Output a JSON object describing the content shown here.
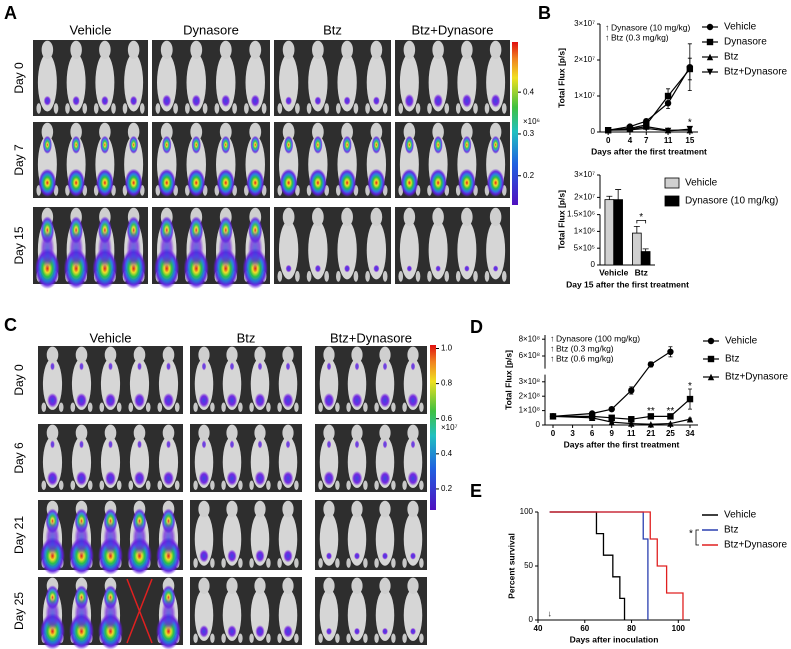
{
  "panel_labels": [
    "A",
    "B",
    "C",
    "D",
    "E"
  ],
  "panel_a": {
    "columns": [
      "Vehicle",
      "Dynasore",
      "Btz",
      "Btz+Dynasore"
    ],
    "rows": [
      "Day 0",
      "Day 7",
      "Day 15"
    ],
    "colorbar": {
      "lim": [
        0.13,
        0.52
      ],
      "ticks": [
        0.2,
        0.3,
        0.4
      ],
      "unit": "×10⁶"
    }
  },
  "panel_c": {
    "columns": [
      "Vehicle",
      "Btz",
      "Btz+Dynasore"
    ],
    "rows": [
      "Day 0",
      "Day 6",
      "Day 21",
      "Day 25"
    ],
    "colorbar": {
      "lim": [
        0.08,
        1.02
      ],
      "ticks": [
        0.2,
        0.4,
        0.6,
        0.8,
        {
          "value": 1,
          "label": "1.0"
        }
      ],
      "unit": "×10⁷"
    }
  },
  "chart_data": [
    {
      "type": "line",
      "x": [
        0,
        4,
        7,
        11,
        15
      ],
      "xticks": [
        0,
        4,
        7,
        11,
        15
      ],
      "xlim": [
        -1.5,
        16.5
      ],
      "ylim": [
        0,
        30000000
      ],
      "yticks": [
        0,
        {
          "value": 10000000,
          "label": "1×10⁷"
        },
        {
          "value": 20000000,
          "label": "2×10⁷"
        },
        {
          "value": 30000000,
          "label": "3×10⁷"
        }
      ],
      "ylabel": "Total Flux [p/s]",
      "xlabel": "Days after the first treatment",
      "treatments": [
        {
          "name": "Dynasore (10 mg/kg)",
          "color": "#e02020"
        },
        {
          "name": "Btz (0.3 mg/kg)",
          "color": "#2040d0"
        }
      ],
      "series": [
        {
          "name": "Vehicle",
          "marker": "circle",
          "color": "#000",
          "values": [
            500000,
            1500000,
            3000000,
            8000000,
            18000000
          ],
          "errors": [
            100000,
            300000,
            600000,
            1500000,
            6500000
          ]
        },
        {
          "name": "Dynasore",
          "marker": "square",
          "color": "#000",
          "values": [
            500000,
            1000000,
            2000000,
            10000000,
            17500000
          ],
          "errors": [
            100000,
            200000,
            500000,
            2000000,
            3000000
          ]
        },
        {
          "name": "Btz",
          "marker": "triangle-up",
          "color": "#000",
          "values": [
            500000,
            800000,
            1500000,
            500000,
            500000
          ],
          "errors": [
            100000,
            200000,
            300000,
            200000,
            200000
          ]
        },
        {
          "name": "Btz+Dynasore",
          "marker": "triangle-down",
          "color": "#000",
          "values": [
            500000,
            600000,
            1000000,
            300000,
            800000
          ],
          "errors": [
            100000,
            100000,
            200000,
            100000,
            300000
          ]
        }
      ],
      "annotations": [
        {
          "text": "*",
          "x": 15,
          "y": 2500000
        }
      ]
    },
    {
      "type": "bar",
      "categories": [
        "Vehicle",
        "Btz"
      ],
      "ylim": [
        0,
        30000000
      ],
      "ybreak": [
        1500000,
        15000000
      ],
      "yticks": [
        0,
        {
          "value": 500000,
          "label": "5×10⁵"
        },
        {
          "value": 1000000,
          "label": "1×10⁶"
        },
        {
          "value": 1500000,
          "label": "1.5×10⁶"
        },
        {
          "value": 20000000,
          "label": "2×10⁷"
        },
        {
          "value": 30000000,
          "label": "3×10⁷"
        }
      ],
      "ylabel": "Total Flux [p/s]",
      "xlabel": "Day 15 after the first treatment",
      "series": [
        {
          "name": "Vehicle",
          "color": "#d0d0d0",
          "values": [
            19000000,
            950000
          ],
          "errors": [
            1500000,
            200000
          ]
        },
        {
          "name": "Dynasore (10 mg/kg)",
          "color": "#000",
          "values": [
            19000000,
            400000
          ],
          "errors": [
            4500000,
            80000
          ]
        }
      ],
      "annotations": [
        {
          "text": "*",
          "category": 1
        }
      ]
    },
    {
      "type": "line",
      "xscale": "ordinal",
      "x": [
        0,
        6,
        9,
        11,
        21,
        25,
        34
      ],
      "xticks": [
        0,
        3,
        6,
        9,
        11,
        21,
        25,
        34
      ],
      "ylim": [
        0,
        850000000
      ],
      "ybreak": [
        350000000,
        450000000
      ],
      "yticks": [
        0,
        {
          "value": 100000000,
          "label": "1×10⁸"
        },
        {
          "value": 200000000,
          "label": "2×10⁸"
        },
        {
          "value": 300000000,
          "label": "3×10⁸"
        },
        {
          "value": 600000000,
          "label": "6×10⁸"
        },
        {
          "value": 800000000,
          "label": "8×10⁸"
        }
      ],
      "ylabel": "Total Flux [p/s]",
      "xlabel": "Days after the first treatment",
      "treatments": [
        {
          "name": "Dynasore (100 mg/kg)",
          "color": "#e02020"
        },
        {
          "name": "Btz (0.3 mg/kg)",
          "color": "#2040d0"
        },
        {
          "name": "Btz (0.6 mg/kg)",
          "color": "#30a030"
        }
      ],
      "series": [
        {
          "name": "Vehicle",
          "marker": "circle",
          "color": "#000",
          "values": [
            60000000,
            80000000,
            110000000,
            240000000,
            500000000,
            650000000,
            null
          ],
          "errors": [
            5000000,
            10000000,
            15000000,
            25000000,
            30000000,
            60000000,
            null
          ]
        },
        {
          "name": "Btz",
          "marker": "square",
          "color": "#000",
          "values": [
            60000000,
            60000000,
            50000000,
            40000000,
            60000000,
            60000000,
            180000000
          ],
          "errors": [
            5000000,
            5000000,
            5000000,
            5000000,
            10000000,
            10000000,
            70000000
          ]
        },
        {
          "name": "Btz+Dynasore",
          "marker": "triangle-up",
          "color": "#000",
          "values": [
            60000000,
            50000000,
            20000000,
            10000000,
            5000000,
            10000000,
            40000000
          ],
          "errors": [
            5000000,
            5000000,
            5000000,
            3000000,
            2000000,
            3000000,
            8000000
          ]
        }
      ],
      "annotations": [
        {
          "text": "*",
          "x": 34,
          "y": 270000000
        },
        {
          "text": "**",
          "x": 21,
          "y": 95000000
        },
        {
          "text": "**",
          "x": 25,
          "y": 95000000
        }
      ]
    },
    {
      "type": "survival",
      "xlim": [
        40,
        105
      ],
      "xticks": [
        40,
        60,
        80,
        100
      ],
      "ylim": [
        0,
        100
      ],
      "yticks": [
        0,
        50,
        100
      ],
      "ylabel": "Percent survival",
      "xlabel": "Days after inoculation",
      "series": [
        {
          "name": "Vehicle",
          "color": "#000",
          "x": [
            45,
            65,
            68,
            72,
            75,
            77
          ],
          "values": [
            100,
            80,
            60,
            40,
            20,
            0
          ]
        },
        {
          "name": "Btz",
          "color": "#2a3fb0",
          "x": [
            45,
            85,
            87
          ],
          "values": [
            100,
            75,
            0
          ]
        },
        {
          "name": "Btz+Dynasore",
          "color": "#e02020",
          "x": [
            45,
            88,
            91,
            95,
            102
          ],
          "values": [
            100,
            75,
            50,
            25,
            0
          ]
        }
      ],
      "annotations": [
        {
          "text": "*"
        }
      ]
    }
  ]
}
